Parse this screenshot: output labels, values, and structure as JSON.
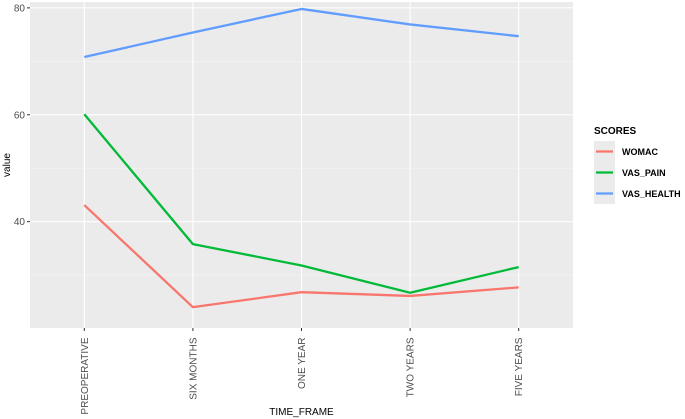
{
  "chart_data": {
    "type": "line",
    "xlabel": "TIME_FRAME",
    "ylabel": "value",
    "categories": [
      "PREOPERATIVE",
      "SIX MONTHS",
      "ONE YEAR",
      "TWO YEARS",
      "FIVE YEARS"
    ],
    "yticks": [
      40,
      60,
      80
    ],
    "ylim": [
      20.1,
      81.1
    ],
    "grid": true,
    "legend": {
      "title": "SCORES",
      "position": "right"
    },
    "series": [
      {
        "name": "WOMAC",
        "color": "#F8766D",
        "values": [
          43.1,
          24.0,
          26.8,
          26.1,
          27.7
        ]
      },
      {
        "name": "VAS_PAIN",
        "color": "#00BA38",
        "values": [
          60.1,
          35.8,
          31.8,
          26.7,
          31.5
        ]
      },
      {
        "name": "VAS_HEALTH",
        "color": "#619CFF",
        "values": [
          70.8,
          75.4,
          79.8,
          76.9,
          74.7
        ]
      }
    ]
  }
}
